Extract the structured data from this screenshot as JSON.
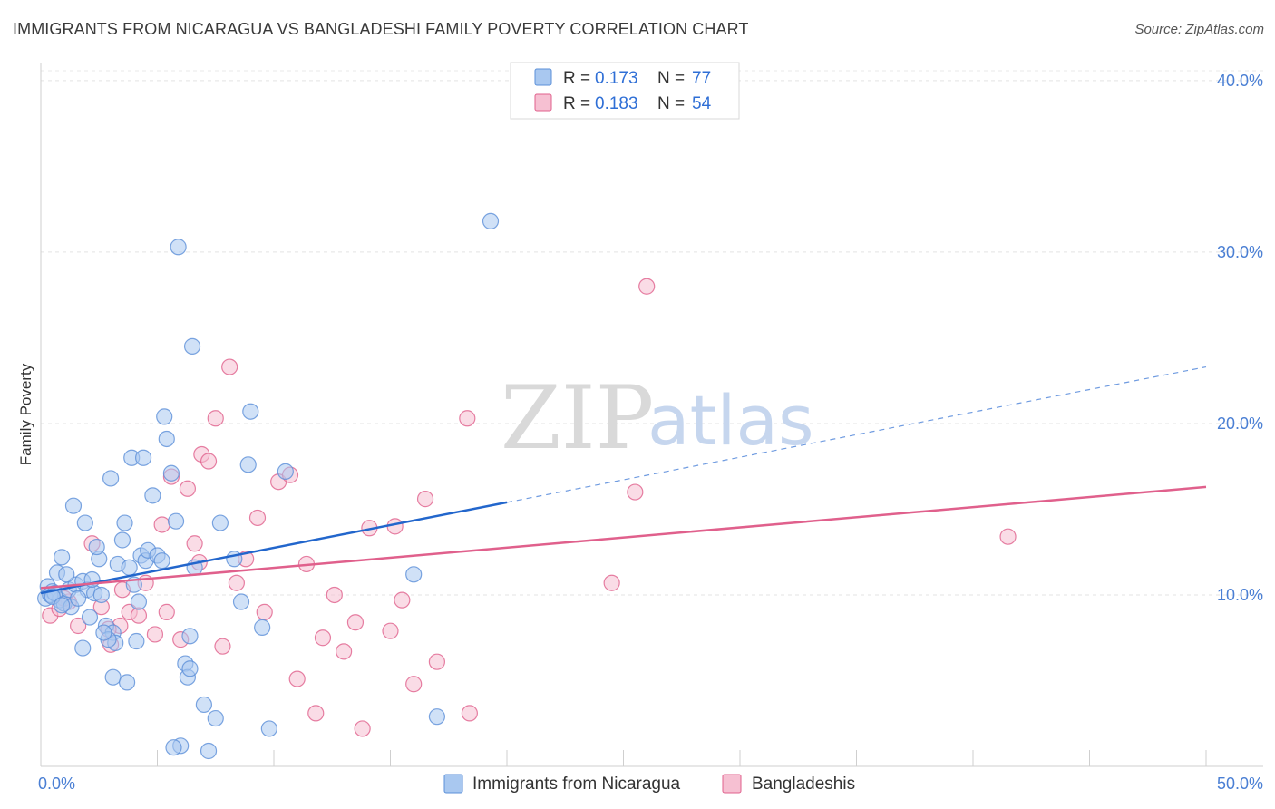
{
  "title": "IMMIGRANTS FROM NICARAGUA VS BANGLADESHI FAMILY POVERTY CORRELATION CHART",
  "source": "Source: ZipAtlas.com",
  "watermark": {
    "zip": "ZIP",
    "atlas": "atlas"
  },
  "colors": {
    "blue": "#2266cc",
    "blue_fill": "#a9c8f0",
    "pink": "#e0608c",
    "pink_fill": "#f6c0d2",
    "axis_text": "#4a7fd4"
  },
  "legend": {
    "r_label": "R =",
    "n_label": "N =",
    "items": [
      {
        "r": "0.173",
        "n": "77"
      },
      {
        "r": "0.183",
        "n": "54"
      }
    ]
  },
  "chart_data": {
    "type": "scatter",
    "title": "IMMIGRANTS FROM NICARAGUA VS BANGLADESHI FAMILY POVERTY CORRELATION CHART",
    "xlabel": "",
    "ylabel": "Family Poverty",
    "xlim": [
      0,
      50
    ],
    "ylim": [
      0,
      41
    ],
    "x_tick_labels": [
      "0.0%",
      "50.0%"
    ],
    "y_ticks": [
      10,
      20,
      30,
      40
    ],
    "y_tick_labels": [
      "10.0%",
      "20.0%",
      "30.0%",
      "40.0%"
    ],
    "grid": true,
    "legend_position": "top-center",
    "series": [
      {
        "name": "Immigrants from Nicaragua",
        "r": 0.173,
        "n": 77,
        "trend": {
          "x0": 0,
          "y0": 10.1,
          "x1": 20,
          "y1": 15.4,
          "dash_to_x": 50,
          "dash_to_y": 23.3
        },
        "points": [
          [
            0.3,
            10.5
          ],
          [
            0.5,
            10.2
          ],
          [
            0.2,
            9.8
          ],
          [
            0.8,
            9.7
          ],
          [
            0.4,
            10.0
          ],
          [
            1.0,
            9.5
          ],
          [
            0.6,
            10.1
          ],
          [
            1.2,
            10.3
          ],
          [
            0.7,
            11.3
          ],
          [
            1.5,
            10.6
          ],
          [
            0.9,
            12.2
          ],
          [
            1.8,
            10.8
          ],
          [
            1.1,
            11.2
          ],
          [
            2.0,
            10.3
          ],
          [
            2.3,
            10.1
          ],
          [
            1.3,
            9.3
          ],
          [
            1.6,
            9.8
          ],
          [
            2.1,
            8.7
          ],
          [
            2.5,
            12.1
          ],
          [
            2.8,
            8.2
          ],
          [
            3.1,
            7.8
          ],
          [
            3.2,
            7.2
          ],
          [
            3.3,
            11.8
          ],
          [
            3.5,
            13.2
          ],
          [
            3.6,
            14.2
          ],
          [
            3.8,
            11.6
          ],
          [
            4.0,
            10.6
          ],
          [
            4.2,
            9.6
          ],
          [
            4.3,
            12.3
          ],
          [
            4.5,
            12.0
          ],
          [
            4.6,
            12.6
          ],
          [
            4.8,
            15.8
          ],
          [
            5.0,
            12.3
          ],
          [
            5.2,
            12.0
          ],
          [
            5.4,
            19.1
          ],
          [
            5.3,
            20.4
          ],
          [
            5.6,
            17.1
          ],
          [
            5.8,
            14.3
          ],
          [
            3.9,
            18.0
          ],
          [
            4.4,
            18.0
          ],
          [
            3.0,
            16.8
          ],
          [
            1.4,
            15.2
          ],
          [
            1.9,
            14.2
          ],
          [
            2.4,
            12.8
          ],
          [
            2.2,
            10.9
          ],
          [
            5.9,
            30.3
          ],
          [
            6.5,
            24.5
          ],
          [
            6.4,
            7.6
          ],
          [
            6.2,
            6.0
          ],
          [
            6.3,
            5.2
          ],
          [
            6.4,
            5.7
          ],
          [
            7.0,
            3.6
          ],
          [
            7.5,
            2.8
          ],
          [
            6.0,
            1.2
          ],
          [
            5.7,
            1.1
          ],
          [
            7.2,
            0.9
          ],
          [
            7.7,
            14.2
          ],
          [
            8.3,
            12.1
          ],
          [
            8.6,
            9.6
          ],
          [
            8.9,
            17.6
          ],
          [
            9.0,
            20.7
          ],
          [
            9.5,
            8.1
          ],
          [
            9.8,
            2.2
          ],
          [
            10.5,
            17.2
          ],
          [
            16.0,
            11.2
          ],
          [
            17.0,
            2.9
          ],
          [
            19.3,
            31.8
          ],
          [
            3.1,
            5.2
          ],
          [
            3.7,
            4.9
          ],
          [
            2.9,
            7.4
          ],
          [
            2.7,
            7.8
          ],
          [
            1.8,
            6.9
          ],
          [
            0.5,
            9.9
          ],
          [
            0.9,
            9.4
          ],
          [
            2.6,
            10.0
          ],
          [
            4.1,
            7.3
          ],
          [
            6.6,
            11.6
          ]
        ]
      },
      {
        "name": "Bangladeshis",
        "r": 0.183,
        "n": 54,
        "trend": {
          "x0": 0,
          "y0": 10.4,
          "x1": 50,
          "y1": 16.3
        },
        "points": [
          [
            0.4,
            8.8
          ],
          [
            0.8,
            9.2
          ],
          [
            1.2,
            9.6
          ],
          [
            1.6,
            8.2
          ],
          [
            2.2,
            13.0
          ],
          [
            2.6,
            9.3
          ],
          [
            3.0,
            7.1
          ],
          [
            3.4,
            8.2
          ],
          [
            3.8,
            9.0
          ],
          [
            4.2,
            8.8
          ],
          [
            4.5,
            10.7
          ],
          [
            4.9,
            7.7
          ],
          [
            5.2,
            14.1
          ],
          [
            5.6,
            16.9
          ],
          [
            6.0,
            7.4
          ],
          [
            6.3,
            16.2
          ],
          [
            6.6,
            13.0
          ],
          [
            6.9,
            18.2
          ],
          [
            7.2,
            17.8
          ],
          [
            7.5,
            20.3
          ],
          [
            7.8,
            7.0
          ],
          [
            8.1,
            23.3
          ],
          [
            8.4,
            10.7
          ],
          [
            8.8,
            12.1
          ],
          [
            9.3,
            14.5
          ],
          [
            9.6,
            9.0
          ],
          [
            10.2,
            16.6
          ],
          [
            10.7,
            17.0
          ],
          [
            11.0,
            5.1
          ],
          [
            11.4,
            11.8
          ],
          [
            11.8,
            3.1
          ],
          [
            12.1,
            7.5
          ],
          [
            12.6,
            10.0
          ],
          [
            13.0,
            6.7
          ],
          [
            13.5,
            8.4
          ],
          [
            13.8,
            2.2
          ],
          [
            14.1,
            13.9
          ],
          [
            15.0,
            7.9
          ],
          [
            15.2,
            14.0
          ],
          [
            15.5,
            9.7
          ],
          [
            16.0,
            4.8
          ],
          [
            16.5,
            15.6
          ],
          [
            17.0,
            6.1
          ],
          [
            18.3,
            20.3
          ],
          [
            18.4,
            3.1
          ],
          [
            24.5,
            10.7
          ],
          [
            25.5,
            16.0
          ],
          [
            26.0,
            28.0
          ],
          [
            41.5,
            13.4
          ],
          [
            2.9,
            8.0
          ],
          [
            5.4,
            9.0
          ],
          [
            6.8,
            11.9
          ],
          [
            1.0,
            9.8
          ],
          [
            3.5,
            10.3
          ]
        ]
      }
    ]
  }
}
